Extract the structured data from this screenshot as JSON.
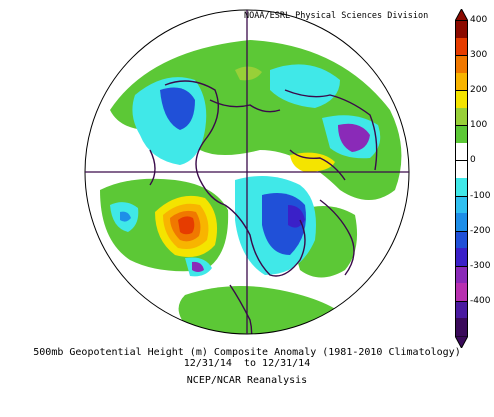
{
  "credit": "NOAA/ESRL Physical Sciences Division",
  "caption": {
    "line1": "500mb Geopotential Height (m) Composite Anomaly (1981-2010 Climatology)",
    "line2": "12/31/14  to 12/31/14",
    "line3": "NCEP/NCAR Reanalysis"
  },
  "colorbar": {
    "labels": [
      "400",
      "300",
      "200",
      "100",
      "0",
      "-100",
      "-200",
      "-300",
      "-400"
    ],
    "colors": [
      "#8b0a00",
      "#e63c00",
      "#f07800",
      "#f8b400",
      "#f4e400",
      "#98d038",
      "#5cc836",
      "#ffffff",
      "#ffffff",
      "#40e8e8",
      "#30c0f0",
      "#1e8ee8",
      "#2050d8",
      "#3a20c8",
      "#8a2ab8",
      "#b830b0",
      "#4a1aa0",
      "#3a0a5a"
    ]
  },
  "map": {
    "projection": "north-polar-stereographic",
    "field": "500mb geopotential height anomaly"
  }
}
